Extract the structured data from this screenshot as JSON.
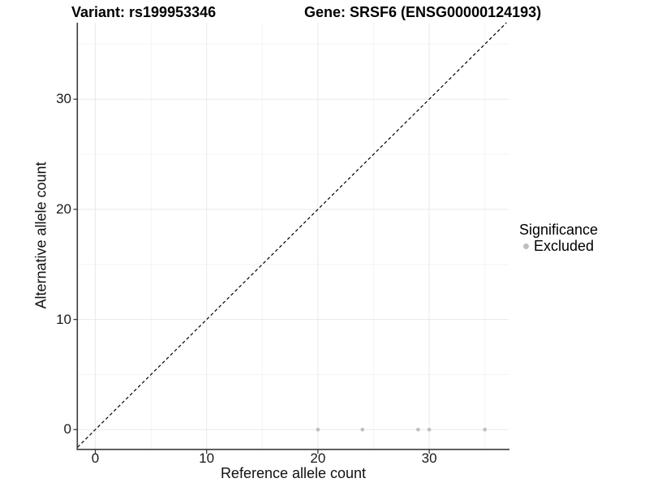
{
  "figure": {
    "title_left": "Variant: rs199953346",
    "title_right": "Gene: SRSF6 (ENSG00000124193)"
  },
  "legend": {
    "title": "Significance",
    "items": [
      {
        "label": "Excluded",
        "color": "#bebebe"
      }
    ]
  },
  "chart_data": {
    "type": "scatter",
    "titles": [
      "Variant: rs199953346",
      "Gene: SRSF6 (ENSG00000124193)"
    ],
    "xlabel": "Reference allele count",
    "ylabel": "Alternative allele count",
    "xlim": [
      -1.6,
      37.1
    ],
    "ylim": [
      -1.8,
      37.0
    ],
    "x_major_ticks": [
      0,
      10,
      20,
      30
    ],
    "y_major_ticks": [
      0,
      10,
      20,
      30
    ],
    "x_minor_gridlines": [
      5,
      15,
      25,
      35
    ],
    "y_minor_gridlines": [
      5,
      15,
      25,
      35
    ],
    "grid": true,
    "legend_position": "right",
    "series": [
      {
        "name": "Excluded",
        "marker": "circle",
        "color": "#bebebe",
        "points": [
          [
            20,
            0
          ],
          [
            24,
            0
          ],
          [
            29,
            0
          ],
          [
            30,
            0
          ],
          [
            35,
            0
          ]
        ]
      }
    ],
    "reference_line": {
      "type": "identity",
      "slope": 1,
      "intercept": 0,
      "linestyle": "dashed",
      "color": "#000000"
    }
  },
  "colors": {
    "background": "#ffffff",
    "axis_line": "#3a3a3a",
    "grid_major": "#e9e9e9",
    "grid_minor": "#f4f4f4",
    "point": "#bebebe",
    "dashed_line": "#000000"
  }
}
